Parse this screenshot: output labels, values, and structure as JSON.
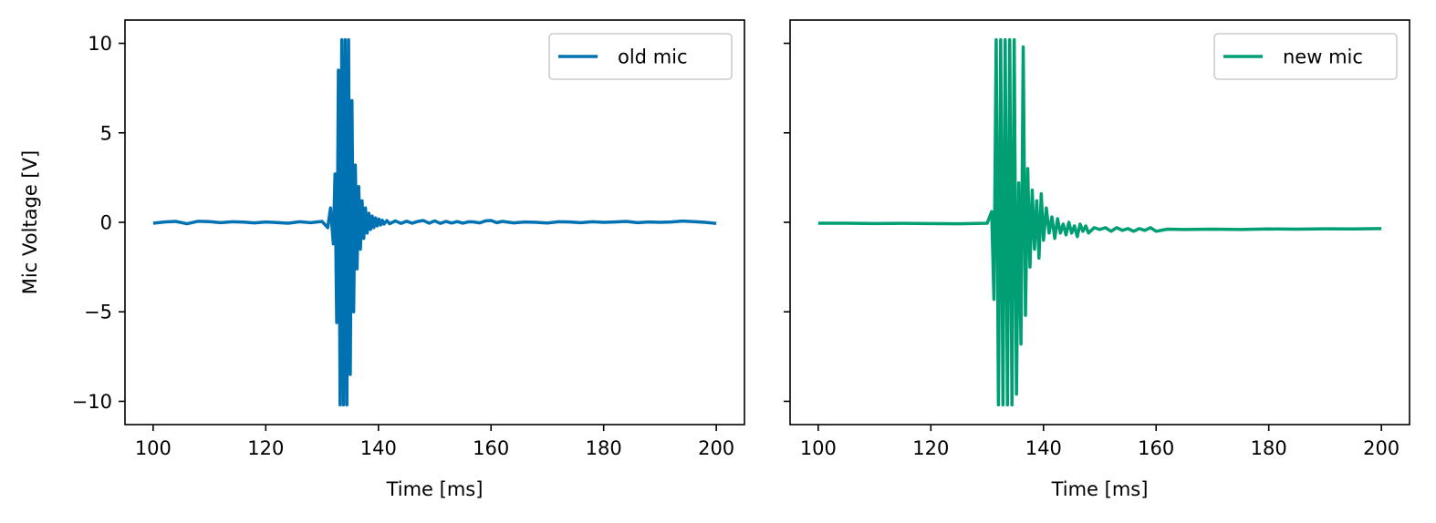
{
  "chart_data": [
    {
      "type": "line",
      "xlabel": "Time [ms]",
      "ylabel": "Mic Voltage [V]",
      "xlim": [
        95,
        205
      ],
      "ylim": [
        -11.3,
        11.3
      ],
      "xticks": [
        100,
        120,
        140,
        160,
        180,
        200
      ],
      "xtick_labels": [
        "100",
        "120",
        "140",
        "160",
        "180",
        "200"
      ],
      "yticks": [
        10,
        5,
        0,
        -5,
        -10
      ],
      "ytick_labels": [
        "10",
        "5",
        "0",
        "−5",
        "−10"
      ],
      "legend_position": "upper right",
      "series": [
        {
          "name": "old mic",
          "color": "#0072b2",
          "x": [
            100,
            102,
            104,
            106,
            108,
            110,
            112,
            114,
            116,
            118,
            120,
            122,
            124,
            126,
            128,
            130,
            131,
            131.5,
            132,
            132.3,
            132.6,
            132.9,
            133.2,
            133.5,
            133.8,
            134.1,
            134.4,
            134.7,
            135.0,
            135.3,
            135.6,
            135.9,
            136.2,
            136.5,
            136.8,
            137.1,
            137.4,
            137.7,
            138.0,
            138.3,
            138.6,
            138.9,
            139.2,
            139.5,
            139.8,
            140.1,
            140.4,
            140.7,
            141.0,
            141.5,
            142,
            143,
            144,
            145,
            146,
            147,
            148,
            149,
            150,
            151,
            152,
            153,
            154,
            155,
            156,
            157,
            158,
            159,
            160,
            161,
            162,
            164,
            166,
            168,
            170,
            172,
            174,
            176,
            178,
            180,
            182,
            184,
            186,
            188,
            190,
            192,
            194,
            196,
            198,
            200
          ],
          "y": [
            -0.05,
            0.02,
            0.05,
            -0.08,
            0.06,
            0.04,
            -0.02,
            0.03,
            0.01,
            -0.03,
            0.02,
            -0.01,
            -0.05,
            0.03,
            -0.02,
            0.05,
            -0.3,
            0.8,
            -1.2,
            2.7,
            -5.6,
            8.5,
            -10.2,
            10.2,
            -10.2,
            10.2,
            -10.2,
            10.2,
            -8.5,
            6.8,
            -5.0,
            3.2,
            -2.6,
            2.0,
            -1.5,
            1.2,
            -0.9,
            0.8,
            -0.6,
            0.5,
            -0.4,
            0.35,
            -0.3,
            0.25,
            -0.2,
            0.18,
            -0.15,
            0.12,
            -0.1,
            0.1,
            -0.08,
            0.08,
            -0.06,
            0.06,
            -0.05,
            0.05,
            0.1,
            -0.05,
            0.08,
            -0.06,
            0.05,
            -0.04,
            0.04,
            -0.05,
            0.03,
            0.02,
            -0.03,
            0.08,
            0.1,
            -0.02,
            0.05,
            -0.03,
            0.02,
            0.0,
            -0.04,
            0.03,
            0.02,
            -0.02,
            0.03,
            0.0,
            0.02,
            0.05,
            -0.02,
            0.02,
            0.0,
            0.02,
            0.07,
            0.04,
            0.0,
            -0.06
          ]
        }
      ]
    },
    {
      "type": "line",
      "xlabel": "Time [ms]",
      "ylabel": "",
      "xlim": [
        95,
        205
      ],
      "ylim": [
        -11.3,
        11.3
      ],
      "xticks": [
        100,
        120,
        140,
        160,
        180,
        200
      ],
      "xtick_labels": [
        "100",
        "120",
        "140",
        "160",
        "180",
        "200"
      ],
      "yticks": [
        10,
        5,
        0,
        -5,
        -10
      ],
      "ytick_labels": [],
      "legend_position": "upper right",
      "series": [
        {
          "name": "new mic",
          "color": "#009e73",
          "x": [
            100,
            105,
            110,
            115,
            120,
            125,
            130,
            130.8,
            131.2,
            131.6,
            132.0,
            132.4,
            132.8,
            133.2,
            133.6,
            134.0,
            134.4,
            134.8,
            135.2,
            135.6,
            136.0,
            136.4,
            136.8,
            137.2,
            137.6,
            138.0,
            138.4,
            138.8,
            139.2,
            139.6,
            140.0,
            140.5,
            141.0,
            141.5,
            142.0,
            142.5,
            143.0,
            143.5,
            144.0,
            144.5,
            145.0,
            145.5,
            146.0,
            146.5,
            147.0,
            147.5,
            148.0,
            149,
            150,
            151,
            152,
            153,
            154,
            155,
            156,
            157,
            158,
            159,
            160,
            162,
            165,
            170,
            175,
            180,
            185,
            190,
            195,
            200
          ],
          "y": [
            -0.05,
            -0.05,
            -0.07,
            -0.06,
            -0.07,
            -0.08,
            -0.05,
            0.6,
            -4.3,
            10.2,
            -10.2,
            10.2,
            -10.2,
            10.2,
            -10.2,
            10.2,
            -10.2,
            10.2,
            -9.6,
            2.2,
            -6.8,
            9.8,
            -5.2,
            3.0,
            -2.5,
            1.8,
            -1.5,
            1.2,
            -2.0,
            1.6,
            -1.0,
            0.8,
            -0.6,
            0.3,
            -0.9,
            0.2,
            -0.6,
            -0.1,
            -0.7,
            0.0,
            -0.6,
            -0.2,
            -0.8,
            -0.1,
            -0.5,
            -0.2,
            -0.6,
            -0.3,
            -0.4,
            -0.3,
            -0.5,
            -0.3,
            -0.45,
            -0.35,
            -0.5,
            -0.35,
            -0.45,
            -0.3,
            -0.5,
            -0.38,
            -0.4,
            -0.38,
            -0.4,
            -0.37,
            -0.38,
            -0.36,
            -0.37,
            -0.35
          ]
        }
      ]
    }
  ]
}
